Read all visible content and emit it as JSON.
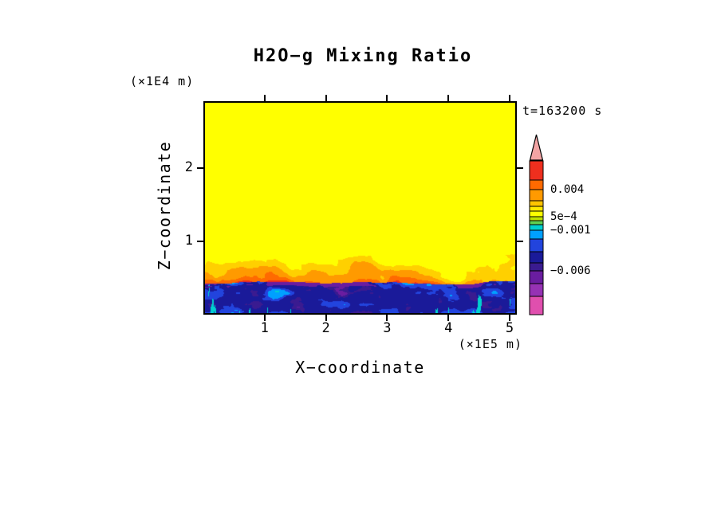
{
  "chart": {
    "title": "H2O−g Mixing Ratio",
    "time_label": "t=163200 s",
    "x_axis": {
      "label": "X−coordinate",
      "units": "(×1E5 m)",
      "ticks": [
        1,
        2,
        3,
        4,
        5
      ]
    },
    "y_axis": {
      "label": "Z−coordinate",
      "units": "(×1E4 m)",
      "ticks": [
        1,
        2
      ]
    }
  },
  "colorbar": {
    "arrow_color": "#f2a4a4",
    "segments": [
      {
        "color": "#ee2f1e",
        "h": 24
      },
      {
        "color": "#ff6a00",
        "h": 12
      },
      {
        "color": "#ff9a00",
        "h": 14
      },
      {
        "color": "#ffc400",
        "h": 7
      },
      {
        "color": "#ffe800",
        "h": 6
      },
      {
        "color": "#ffff00",
        "h": 7
      },
      {
        "color": "#bfe000",
        "h": 5
      },
      {
        "color": "#5fcf50",
        "h": 5
      },
      {
        "color": "#00d0d0",
        "h": 7
      },
      {
        "color": "#00a0ff",
        "h": 11
      },
      {
        "color": "#2244dd",
        "h": 16
      },
      {
        "color": "#1a1a99",
        "h": 14
      },
      {
        "color": "#3a1b90",
        "h": 10
      },
      {
        "color": "#6a1da0",
        "h": 16
      },
      {
        "color": "#9632b4",
        "h": 16
      },
      {
        "color": "#e04fae",
        "h": 23
      }
    ],
    "ticks": [
      {
        "label": "0.004",
        "pos": 0.187
      },
      {
        "label": "5e−4",
        "pos": 0.363
      },
      {
        "label": "−0.001",
        "pos": 0.451
      },
      {
        "label": "−0.006",
        "pos": 0.715
      }
    ]
  },
  "chart_data": {
    "type": "heatmap",
    "title": "H2O−g Mixing Ratio",
    "xlabel": "X−coordinate (×1E5 m)",
    "ylabel": "Z−coordinate (×1E4 m)",
    "x_ticks": [
      1,
      2,
      3,
      4,
      5
    ],
    "y_ticks": [
      1,
      2
    ],
    "xlim": [
      0,
      5.12
    ],
    "ylim": [
      0,
      2.87
    ],
    "time_annotation": "t=163200 s",
    "colorbar_tick_labels": [
      "0.004",
      "5e−4",
      "−0.001",
      "−0.006"
    ],
    "legend_position": "right",
    "grid": false,
    "regions": [
      {
        "z_range": [
          1.05,
          2.87
        ],
        "approx_value": "uniform weak positive background (yellow band, ~2e−4)",
        "color": "yellow"
      },
      {
        "z_range": [
          0.42,
          1.05
        ],
        "approx_value": "convective plumes, ~0.001 to 0.004",
        "color": "orange with dark-orange cores"
      },
      {
        "z_range": [
          0.0,
          0.42
        ],
        "approx_value": "turbulent surface layer, ~−0.001 to −0.006",
        "color": "navy/blue with cyan streaks and purple–magenta blotches"
      }
    ]
  },
  "field": {
    "seed": 42,
    "band_top": 0.42,
    "band_wobble": 0.12,
    "plume_top_base": 0.95,
    "plume_top_var": 0.55,
    "palette": {
      "yellow": "#ffff00",
      "gold": "#ffd000",
      "orange": "#ff9a00",
      "dark_orange": "#ff6a00",
      "red": "#ee2f1e",
      "cyan": "#00d0d0",
      "light_blue": "#00a0ff",
      "blue": "#2244dd",
      "navy": "#1a1a99",
      "indigo": "#3a1b90",
      "dark_purple": "#6a1da0",
      "magenta": "#e04fae"
    }
  }
}
